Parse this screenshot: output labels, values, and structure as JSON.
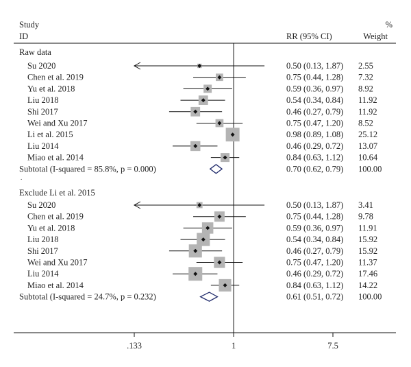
{
  "chart_data": {
    "type": "forest",
    "header": {
      "study_line1": "Study",
      "study_line2": "ID",
      "rr_label": "RR (95% CI)",
      "weight_line1": "%",
      "weight_line2": "Weight"
    },
    "x_axis": {
      "scale": "log",
      "range": [
        0.133,
        7.5
      ],
      "ticks": [
        {
          "value": 0.133,
          "label": ".133"
        },
        {
          "value": 1,
          "label": "1"
        },
        {
          "value": 7.5,
          "label": "7.5"
        }
      ],
      "null_line": 1
    },
    "groups": [
      {
        "label": "Raw data",
        "studies": [
          {
            "name": "Su 2020",
            "rr": 0.5,
            "lo": 0.13,
            "hi": 1.87,
            "ci_text": "0.50 (0.13, 1.87)",
            "weight": "2.55",
            "left_arrow": true
          },
          {
            "name": "Chen et al. 2019",
            "rr": 0.75,
            "lo": 0.44,
            "hi": 1.28,
            "ci_text": "0.75 (0.44, 1.28)",
            "weight": "7.32"
          },
          {
            "name": "Yu et al. 2018",
            "rr": 0.59,
            "lo": 0.36,
            "hi": 0.97,
            "ci_text": "0.59 (0.36, 0.97)",
            "weight": "8.92"
          },
          {
            "name": "Liu 2018",
            "rr": 0.54,
            "lo": 0.34,
            "hi": 0.84,
            "ci_text": "0.54 (0.34, 0.84)",
            "weight": "11.92"
          },
          {
            "name": "Shi 2017",
            "rr": 0.46,
            "lo": 0.27,
            "hi": 0.79,
            "ci_text": "0.46 (0.27, 0.79)",
            "weight": "11.92"
          },
          {
            "name": "Wei and Xu 2017",
            "rr": 0.75,
            "lo": 0.47,
            "hi": 1.2,
            "ci_text": "0.75 (0.47, 1.20)",
            "weight": "8.52"
          },
          {
            "name": "Li et al. 2015",
            "rr": 0.98,
            "lo": 0.89,
            "hi": 1.08,
            "ci_text": "0.98 (0.89, 1.08)",
            "weight": "25.12"
          },
          {
            "name": "Liu 2014",
            "rr": 0.46,
            "lo": 0.29,
            "hi": 0.72,
            "ci_text": "0.46 (0.29, 0.72)",
            "weight": "13.07"
          },
          {
            "name": "Miao et al. 2014",
            "rr": 0.84,
            "lo": 0.63,
            "hi": 1.12,
            "ci_text": "0.84 (0.63, 1.12)",
            "weight": "10.64"
          }
        ],
        "subtotal": {
          "label": "Subtotal (I-squared = 85.8%, p = 0.000)",
          "rr": 0.7,
          "lo": 0.62,
          "hi": 0.79,
          "ci_text": "0.70 (0.62, 0.79)",
          "weight": "100.00"
        }
      },
      {
        "label": "Exclude Li et al. 2015",
        "studies": [
          {
            "name": "Su 2020",
            "rr": 0.5,
            "lo": 0.13,
            "hi": 1.87,
            "ci_text": "0.50 (0.13, 1.87)",
            "weight": "3.41",
            "left_arrow": true
          },
          {
            "name": "Chen et al. 2019",
            "rr": 0.75,
            "lo": 0.44,
            "hi": 1.28,
            "ci_text": "0.75 (0.44, 1.28)",
            "weight": "9.78"
          },
          {
            "name": "Yu et al. 2018",
            "rr": 0.59,
            "lo": 0.36,
            "hi": 0.97,
            "ci_text": "0.59 (0.36, 0.97)",
            "weight": "11.91"
          },
          {
            "name": "Liu 2018",
            "rr": 0.54,
            "lo": 0.34,
            "hi": 0.84,
            "ci_text": "0.54 (0.34, 0.84)",
            "weight": "15.92"
          },
          {
            "name": "Shi 2017",
            "rr": 0.46,
            "lo": 0.27,
            "hi": 0.79,
            "ci_text": "0.46 (0.27, 0.79)",
            "weight": "15.92"
          },
          {
            "name": "Wei and Xu 2017",
            "rr": 0.75,
            "lo": 0.47,
            "hi": 1.2,
            "ci_text": "0.75 (0.47, 1.20)",
            "weight": "11.37"
          },
          {
            "name": "Liu 2014",
            "rr": 0.46,
            "lo": 0.29,
            "hi": 0.72,
            "ci_text": "0.46 (0.29, 0.72)",
            "weight": "17.46"
          },
          {
            "name": "Miao et al. 2014",
            "rr": 0.84,
            "lo": 0.63,
            "hi": 1.12,
            "ci_text": "0.84 (0.63, 1.12)",
            "weight": "14.22"
          }
        ],
        "subtotal": {
          "label": "Subtotal (I-squared = 24.7%, p = 0.232)",
          "rr": 0.61,
          "lo": 0.51,
          "hi": 0.72,
          "ci_text": "0.61 (0.51, 0.72)",
          "weight": "100.00"
        }
      }
    ],
    "colors": {
      "text": "#222222",
      "line": "#111111",
      "weight_box": "#b4b4b4",
      "diamond": "#1f2a6b"
    }
  }
}
